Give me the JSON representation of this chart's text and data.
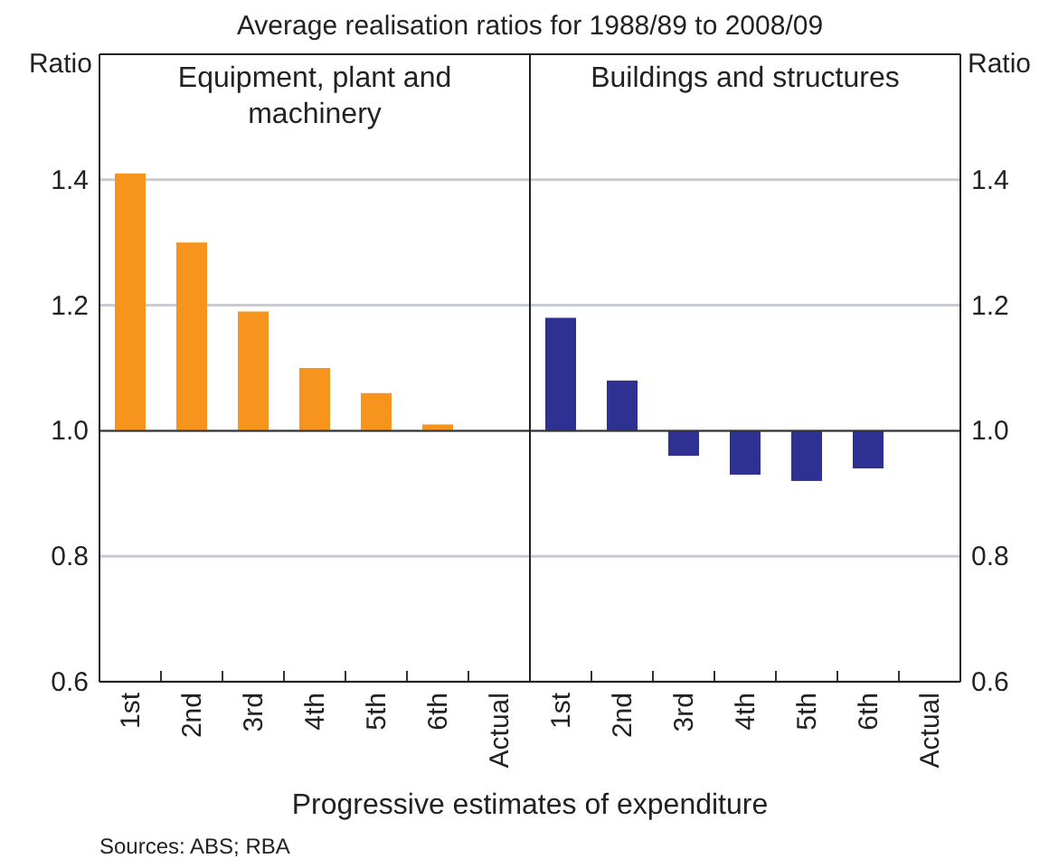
{
  "chart_data": [
    {
      "type": "bar",
      "title": "Equipment, plant and machinery",
      "subtitle": "Average realisation ratios for 1988/89 to 2008/09",
      "xlabel": "Progressive estimates of expenditure",
      "ylabel": "Ratio",
      "annotations": [
        "Sources: ABS; RBA"
      ],
      "categories": [
        "1st",
        "2nd",
        "3rd",
        "4th",
        "5th",
        "6th",
        "Actual"
      ],
      "base": [
        1,
        1,
        1,
        1,
        1,
        1,
        null
      ],
      "values": [
        0.41,
        0.3,
        0.19,
        0.1,
        0.06,
        0.01,
        null
      ],
      "color": "#f7941d",
      "ylim": [
        0.6,
        1.6
      ],
      "yticks": [
        0.6,
        0.8,
        {
          "value": 1,
          "label": "1.0"
        },
        1.2,
        1.4
      ],
      "grid": "y",
      "ref_lines": [
        {
          "axis": "y",
          "value": 1,
          "color": "#333333"
        }
      ]
    },
    {
      "type": "bar",
      "title": "Buildings and structures",
      "ylabel": "Ratio",
      "categories": [
        "1st",
        "2nd",
        "3rd",
        "4th",
        "5th",
        "6th",
        "Actual"
      ],
      "base": [
        1,
        1,
        1,
        1,
        1,
        1,
        null
      ],
      "values": [
        0.18,
        0.08,
        -0.04,
        -0.07,
        -0.08,
        -0.06,
        null
      ],
      "color": "#2e3192",
      "ylim": [
        0.6,
        1.6
      ],
      "yticks": [
        0.6,
        0.8,
        {
          "value": 1,
          "label": "1.0"
        },
        1.2,
        1.4
      ],
      "grid": "y",
      "ref_lines": [
        {
          "axis": "y",
          "value": 1,
          "color": "#333333"
        }
      ]
    }
  ]
}
